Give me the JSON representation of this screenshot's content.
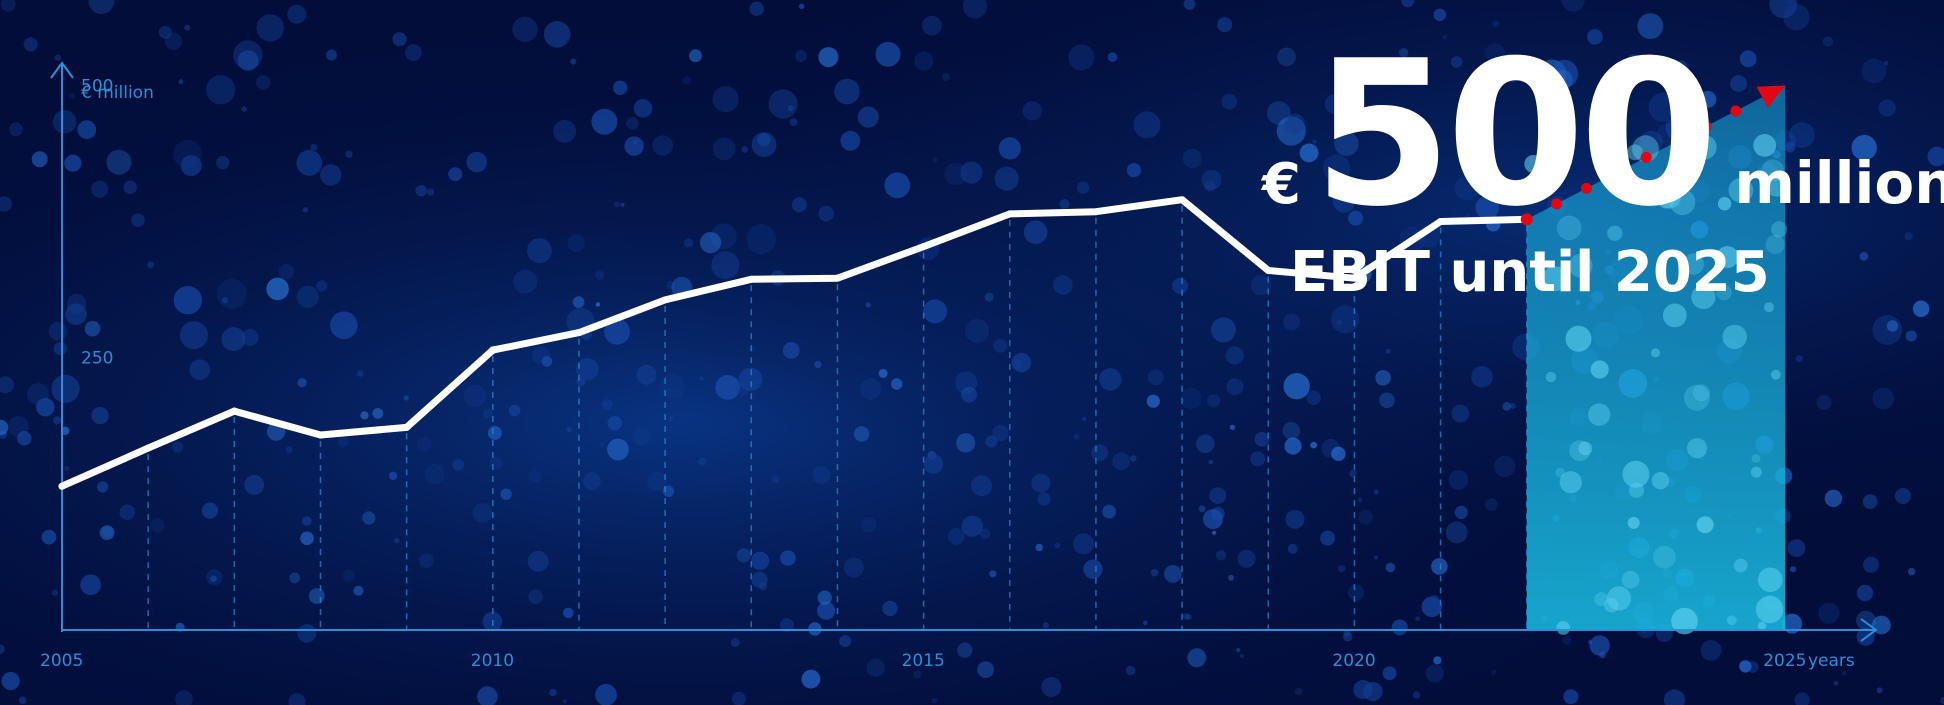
{
  "headline": {
    "currency": "€",
    "value": "500",
    "unit": "million",
    "subtitle": "EBIT until 2025"
  },
  "colors": {
    "background": "#020d3a",
    "axis": "#2a8fd6",
    "line": "#ffffff",
    "projection": "#e30613",
    "target_band": "#1aa6d9"
  },
  "chart_data": {
    "type": "line",
    "ylabel": "€ million",
    "xlabel": "years",
    "xlim": [
      2005,
      2026.1
    ],
    "ylim": [
      0,
      560
    ],
    "yticks": [
      250,
      500
    ],
    "xticks": [
      2005,
      2010,
      2015,
      2020,
      2025
    ],
    "grid": "vertical dashed lines at each year",
    "series": [
      {
        "values": [
          {
            "x": 2005,
            "y": 132
          },
          {
            "x": 2006,
            "y": 167
          },
          {
            "x": 2007,
            "y": 201
          },
          {
            "x": 2008,
            "y": 179
          },
          {
            "x": 2009,
            "y": 186
          },
          {
            "x": 2010,
            "y": 257
          },
          {
            "x": 2011,
            "y": 273
          },
          {
            "x": 2012,
            "y": 303
          },
          {
            "x": 2013,
            "y": 322
          },
          {
            "x": 2014,
            "y": 323
          },
          {
            "x": 2015,
            "y": 352
          },
          {
            "x": 2016,
            "y": 382
          },
          {
            "x": 2017,
            "y": 384
          },
          {
            "x": 2018,
            "y": 395
          },
          {
            "x": 2019,
            "y": 330
          },
          {
            "x": 2020,
            "y": 323
          },
          {
            "x": 2021,
            "y": 375
          },
          {
            "x": 2022,
            "y": 377
          }
        ]
      },
      {
        "values": [
          {
            "x": 2022,
            "y": 377
          },
          {
            "x": 2025,
            "y": 500
          }
        ]
      }
    ],
    "highlight_range": [
      2022,
      2025
    ]
  }
}
